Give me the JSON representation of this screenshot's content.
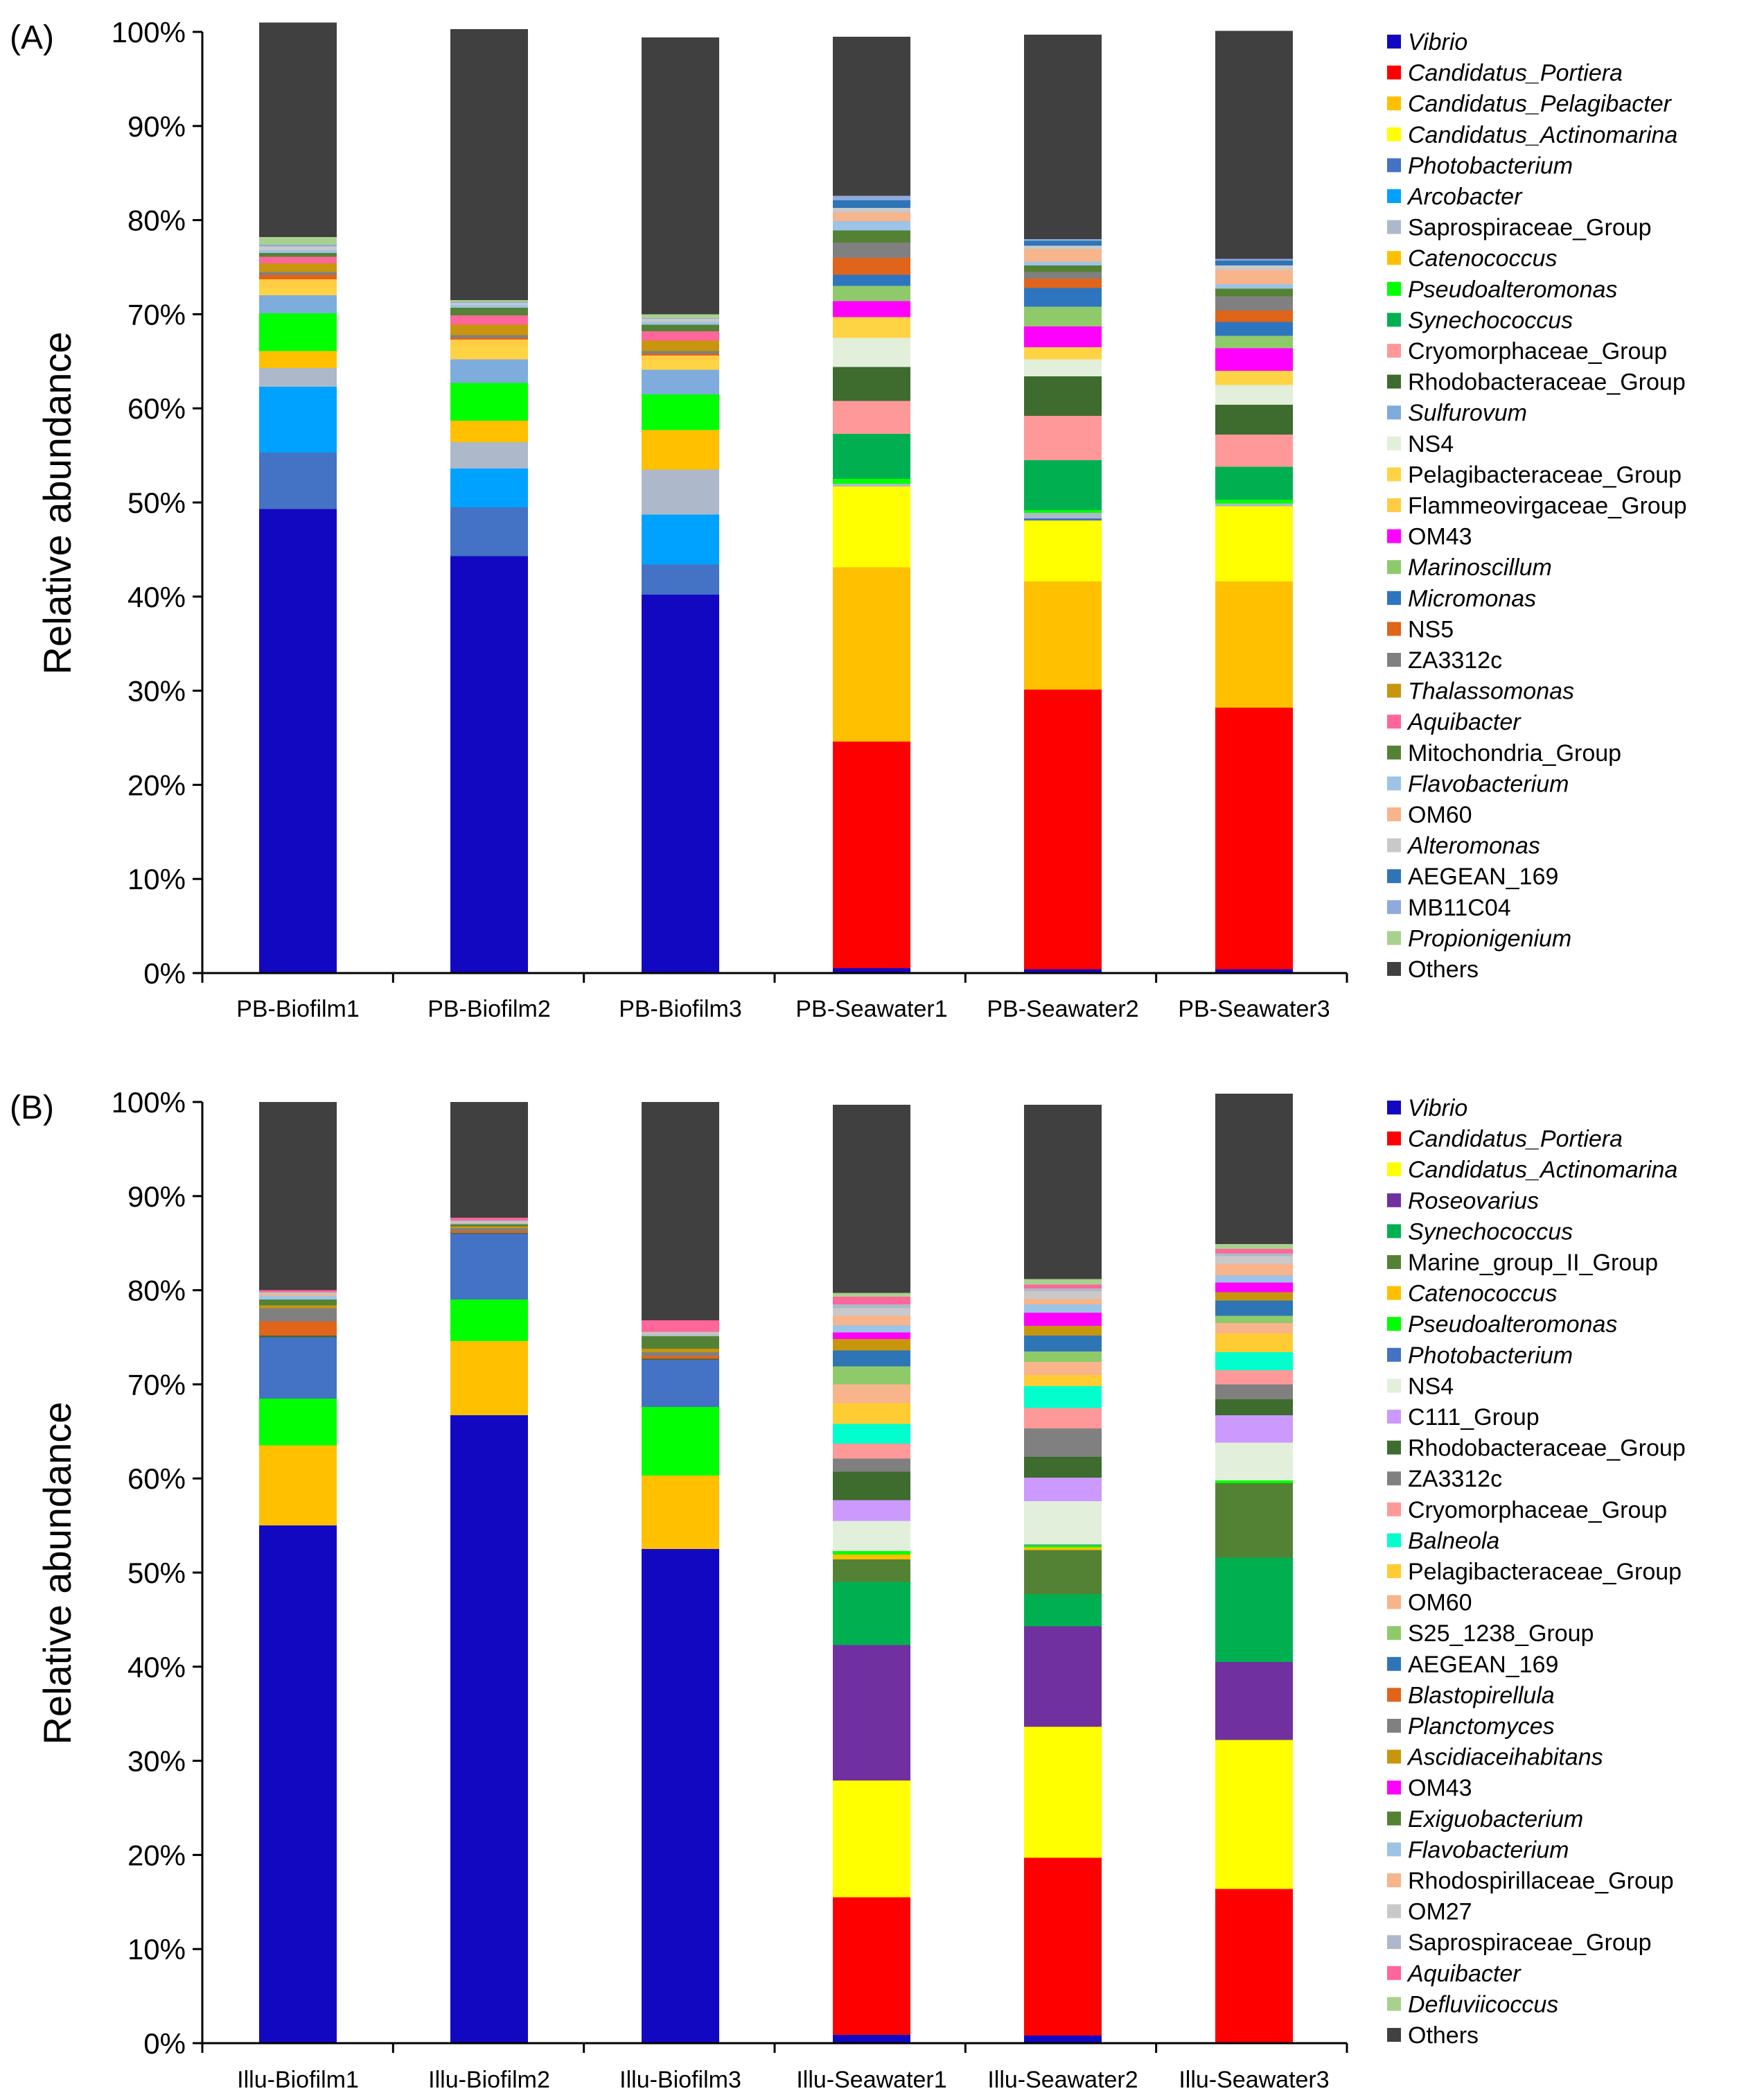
{
  "chart_data": [
    {
      "type": "bar",
      "stacked": true,
      "panel_label": "(A)",
      "ylabel": "Relative abundance",
      "ylim": [
        0,
        100
      ],
      "yticks": [
        "0%",
        "10%",
        "20%",
        "30%",
        "40%",
        "50%",
        "60%",
        "70%",
        "80%",
        "90%",
        "100%"
      ],
      "categories": [
        "PB-Biofilm1",
        "PB-Biofilm2",
        "PB-Biofilm3",
        "PB-Seawater1",
        "PB-Seawater2",
        "PB-Seawater3"
      ],
      "legend": [
        {
          "name": "Vibrio",
          "italic": true,
          "color": "#1208c2"
        },
        {
          "name": "Candidatus_Portiera",
          "italic": true,
          "color": "#ff0000"
        },
        {
          "name": "Candidatus_Pelagibacter",
          "italic": true,
          "color": "#ffc000"
        },
        {
          "name": "Candidatus_Actinomarina",
          "italic": true,
          "color": "#ffff00"
        },
        {
          "name": "Photobacterium",
          "italic": true,
          "color": "#4472c4"
        },
        {
          "name": "Arcobacter",
          "italic": true,
          "color": "#00a2ff"
        },
        {
          "name": "Saprospiraceae_Group",
          "italic": false,
          "color": "#adb9ca"
        },
        {
          "name": "Catenococcus",
          "italic": true,
          "color": "#ffc000"
        },
        {
          "name": "Pseudoalteromonas",
          "italic": true,
          "color": "#00ff00"
        },
        {
          "name": "Synechococcus",
          "italic": true,
          "color": "#00b050"
        },
        {
          "name": "Cryomorphaceae_Group",
          "italic": false,
          "color": "#ff9999"
        },
        {
          "name": "Rhodobacteraceae_Group",
          "italic": false,
          "color": "#3e6b2e"
        },
        {
          "name": "Sulfurovum",
          "italic": true,
          "color": "#7eacdc"
        },
        {
          "name": "NS4",
          "italic": false,
          "color": "#e2efda"
        },
        {
          "name": "Pelagibacteraceae_Group",
          "italic": false,
          "color": "#ffd444"
        },
        {
          "name": "Flammeovirgaceae_Group",
          "italic": false,
          "color": "#ffcc44"
        },
        {
          "name": "OM43",
          "italic": false,
          "color": "#ff00ff"
        },
        {
          "name": "Marinoscillum",
          "italic": true,
          "color": "#8fca6a"
        },
        {
          "name": "Micromonas",
          "italic": true,
          "color": "#2e75c0"
        },
        {
          "name": "NS5",
          "italic": false,
          "color": "#e0641a"
        },
        {
          "name": "ZA3312c",
          "italic": false,
          "color": "#808080"
        },
        {
          "name": "Thalassomonas",
          "italic": true,
          "color": "#c8960c"
        },
        {
          "name": "Aquibacter",
          "italic": true,
          "color": "#ff6699"
        },
        {
          "name": "Mitochondria_Group",
          "italic": false,
          "color": "#548235"
        },
        {
          "name": "Flavobacterium",
          "italic": true,
          "color": "#9dc3e6"
        },
        {
          "name": "OM60",
          "italic": false,
          "color": "#f8b48a"
        },
        {
          "name": "Alteromonas",
          "italic": true,
          "color": "#c9c9c9"
        },
        {
          "name": "AEGEAN_169",
          "italic": false,
          "color": "#2e75b6"
        },
        {
          "name": "MB11C04",
          "italic": false,
          "color": "#8faadc"
        },
        {
          "name": "Propionigenium",
          "italic": true,
          "color": "#a9d18e"
        },
        {
          "name": "Others",
          "italic": false,
          "color": "#404040"
        }
      ],
      "series": [
        {
          "name": "Vibrio",
          "values": [
            49.3,
            44.3,
            40.2,
            0.5,
            0.4,
            0.4
          ]
        },
        {
          "name": "Candidatus_Portiera",
          "values": [
            0,
            0,
            0,
            24.1,
            29.7,
            27.8
          ]
        },
        {
          "name": "Candidatus_Pelagibacter",
          "values": [
            0,
            0,
            0,
            18.5,
            11.5,
            13.4
          ]
        },
        {
          "name": "Candidatus_Actinomarina",
          "values": [
            0,
            0,
            0,
            8.6,
            6.5,
            8.0
          ]
        },
        {
          "name": "Photobacterium",
          "values": [
            6.0,
            5.2,
            3.2,
            0,
            0.2,
            0
          ]
        },
        {
          "name": "Arcobacter",
          "values": [
            7.0,
            4.1,
            5.3,
            0,
            0,
            0
          ]
        },
        {
          "name": "Saprospiraceae_Group",
          "values": [
            2.0,
            2.8,
            4.8,
            0.3,
            0.6,
            0.3
          ]
        },
        {
          "name": "Catenococcus",
          "values": [
            1.8,
            2.3,
            4.2,
            0,
            0,
            0
          ]
        },
        {
          "name": "Pseudoalteromonas",
          "values": [
            4.0,
            4.0,
            3.8,
            0.5,
            0.3,
            0.4
          ]
        },
        {
          "name": "Synechococcus",
          "values": [
            0,
            0,
            0,
            4.8,
            5.3,
            3.5
          ]
        },
        {
          "name": "Cryomorphaceae_Group",
          "values": [
            0,
            0,
            0,
            3.5,
            4.7,
            3.4
          ]
        },
        {
          "name": "Rhodobacteraceae_Group",
          "values": [
            0,
            0,
            0,
            3.6,
            4.2,
            3.2
          ]
        },
        {
          "name": "Sulfurovum",
          "values": [
            1.9,
            2.5,
            2.6,
            0,
            0,
            0
          ]
        },
        {
          "name": "NS4",
          "values": [
            0,
            0,
            0,
            3.1,
            1.8,
            2.1
          ]
        },
        {
          "name": "Pelagibacteraceae_Group",
          "values": [
            0.8,
            1.4,
            1.0,
            2.2,
            1.3,
            1.5
          ]
        },
        {
          "name": "Flammeovirgaceae_Group",
          "values": [
            0.9,
            0.7,
            0.5,
            0,
            0,
            0
          ]
        },
        {
          "name": "OM43",
          "values": [
            0,
            0,
            0,
            1.7,
            2.2,
            2.4
          ]
        },
        {
          "name": "Marinoscillum",
          "values": [
            0,
            0,
            0,
            1.6,
            2.1,
            1.3
          ]
        },
        {
          "name": "Micromonas",
          "values": [
            0,
            0,
            0,
            1.2,
            2.0,
            1.5
          ]
        },
        {
          "name": "NS5",
          "values": [
            0.5,
            0.2,
            0.2,
            1.8,
            1.0,
            1.2
          ]
        },
        {
          "name": "ZA3312c",
          "values": [
            0.3,
            0.3,
            0.3,
            1.6,
            0.7,
            1.5
          ]
        },
        {
          "name": "Thalassomonas",
          "values": [
            0.9,
            1.1,
            1.1,
            0,
            0,
            0
          ]
        },
        {
          "name": "Aquibacter",
          "values": [
            0.7,
            1.0,
            1.0,
            0,
            0,
            0
          ]
        },
        {
          "name": "Mitochondria_Group",
          "values": [
            0.4,
            0.8,
            0.7,
            1.3,
            0.7,
            0.8
          ]
        },
        {
          "name": "Flavobacterium",
          "values": [
            0.3,
            0.3,
            0.3,
            1.0,
            0.4,
            0.5
          ]
        },
        {
          "name": "OM60",
          "values": [
            0,
            0,
            0,
            0.9,
            1.3,
            1.5
          ]
        },
        {
          "name": "Alteromonas",
          "values": [
            0.4,
            0.2,
            0.3,
            0.5,
            0.4,
            0.5
          ]
        },
        {
          "name": "AEGEAN_169",
          "values": [
            0,
            0,
            0,
            0.8,
            0.5,
            0.5
          ]
        },
        {
          "name": "MB11C04",
          "values": [
            0.2,
            0.1,
            0.1,
            0.5,
            0.2,
            0.2
          ]
        },
        {
          "name": "Propionigenium",
          "values": [
            0.8,
            0.2,
            0.4,
            0,
            0,
            0
          ]
        },
        {
          "name": "Others",
          "values": [
            22.8,
            28.8,
            29.4,
            16.9,
            21.7,
            24.2
          ]
        }
      ]
    },
    {
      "type": "bar",
      "stacked": true,
      "panel_label": "(B)",
      "ylabel": "Relative abundance",
      "ylim": [
        0,
        100
      ],
      "yticks": [
        "0%",
        "10%",
        "20%",
        "30%",
        "40%",
        "50%",
        "60%",
        "70%",
        "80%",
        "90%",
        "100%"
      ],
      "categories": [
        "Illu-Biofilm1",
        "Illu-Biofilm2",
        "Illu-Biofilm3",
        "Illu-Seawater1",
        "Illu-Seawater2",
        "Illu-Seawater3"
      ],
      "legend": [
        {
          "name": "Vibrio",
          "italic": true,
          "color": "#1208c2"
        },
        {
          "name": "Candidatus_Portiera",
          "italic": true,
          "color": "#ff0000"
        },
        {
          "name": "Candidatus_Actinomarina",
          "italic": true,
          "color": "#ffff00"
        },
        {
          "name": "Roseovarius",
          "italic": true,
          "color": "#7030a0"
        },
        {
          "name": "Synechococcus",
          "italic": true,
          "color": "#00b050"
        },
        {
          "name": "Marine_group_II_Group",
          "italic": false,
          "color": "#548235"
        },
        {
          "name": "Catenococcus",
          "italic": true,
          "color": "#ffc000"
        },
        {
          "name": "Pseudoalteromonas",
          "italic": true,
          "color": "#00ff00"
        },
        {
          "name": "Photobacterium",
          "italic": true,
          "color": "#4472c4"
        },
        {
          "name": "NS4",
          "italic": false,
          "color": "#e2efda"
        },
        {
          "name": "C111_Group",
          "italic": false,
          "color": "#cc99ff"
        },
        {
          "name": "Rhodobacteraceae_Group",
          "italic": false,
          "color": "#3e6b2e"
        },
        {
          "name": "ZA3312c",
          "italic": false,
          "color": "#808080"
        },
        {
          "name": "Cryomorphaceae_Group",
          "italic": false,
          "color": "#ff9999"
        },
        {
          "name": "Balneola",
          "italic": true,
          "color": "#00ffcc"
        },
        {
          "name": "Pelagibacteraceae_Group",
          "italic": false,
          "color": "#ffcc33"
        },
        {
          "name": "OM60",
          "italic": false,
          "color": "#f8b48a"
        },
        {
          "name": "S25_1238_Group",
          "italic": false,
          "color": "#8fca6a"
        },
        {
          "name": "AEGEAN_169",
          "italic": false,
          "color": "#2e75b6"
        },
        {
          "name": "Blastopirellula",
          "italic": true,
          "color": "#e0641a"
        },
        {
          "name": "Planctomyces",
          "italic": true,
          "color": "#808080"
        },
        {
          "name": "Ascidiaceihabitans",
          "italic": true,
          "color": "#c8960c"
        },
        {
          "name": "OM43",
          "italic": false,
          "color": "#ff00ff"
        },
        {
          "name": "Exiguobacterium",
          "italic": true,
          "color": "#548235"
        },
        {
          "name": "Flavobacterium",
          "italic": true,
          "color": "#9dc3e6"
        },
        {
          "name": "Rhodospirillaceae_Group",
          "italic": false,
          "color": "#f8b48a"
        },
        {
          "name": "OM27",
          "italic": false,
          "color": "#c9c9c9"
        },
        {
          "name": "Saprospiraceae_Group",
          "italic": false,
          "color": "#adb9ca"
        },
        {
          "name": "Aquibacter",
          "italic": true,
          "color": "#ff6699"
        },
        {
          "name": "Defluviicoccus",
          "italic": true,
          "color": "#a9d18e"
        },
        {
          "name": "Others",
          "italic": false,
          "color": "#404040"
        }
      ],
      "series": [
        {
          "name": "Vibrio",
          "values": [
            55.0,
            66.7,
            52.5,
            0.9,
            0.8,
            0
          ]
        },
        {
          "name": "Candidatus_Portiera",
          "values": [
            0,
            0,
            0,
            14.6,
            18.9,
            16.4
          ]
        },
        {
          "name": "Candidatus_Actinomarina",
          "values": [
            0,
            0,
            0,
            12.4,
            13.9,
            15.8
          ]
        },
        {
          "name": "Roseovarius",
          "values": [
            0,
            0,
            0,
            14.4,
            10.7,
            8.3
          ]
        },
        {
          "name": "Synechococcus",
          "values": [
            0,
            0,
            0,
            6.7,
            3.4,
            11.1
          ]
        },
        {
          "name": "Marine_group_II_Group",
          "values": [
            0,
            0,
            0,
            2.4,
            4.7,
            7.9
          ]
        },
        {
          "name": "Catenococcus",
          "values": [
            8.5,
            7.9,
            7.8,
            0.5,
            0.3,
            0
          ]
        },
        {
          "name": "Pseudoalteromonas",
          "values": [
            5.0,
            4.4,
            7.3,
            0.4,
            0.2,
            0.3
          ]
        },
        {
          "name": "Photobacterium",
          "values": [
            6.5,
            7.0,
            5.0,
            0,
            0.1,
            0
          ]
        },
        {
          "name": "NS4",
          "values": [
            0,
            0,
            0,
            3.2,
            4.6,
            4.0
          ]
        },
        {
          "name": "C111_Group",
          "values": [
            0,
            0,
            0,
            2.2,
            2.5,
            2.9
          ]
        },
        {
          "name": "Rhodobacteraceae_Group",
          "values": [
            0.2,
            0.1,
            0.1,
            3.0,
            2.2,
            1.7
          ]
        },
        {
          "name": "ZA3312c",
          "values": [
            0,
            0,
            0,
            1.4,
            3.0,
            1.6
          ]
        },
        {
          "name": "Cryomorphaceae_Group",
          "values": [
            0,
            0,
            0,
            1.6,
            2.2,
            1.5
          ]
        },
        {
          "name": "Balneola",
          "values": [
            0,
            0,
            0,
            2.1,
            2.3,
            1.9
          ]
        },
        {
          "name": "Pelagibacteraceae_Group",
          "values": [
            0,
            0,
            0,
            2.2,
            1.2,
            2.0
          ]
        },
        {
          "name": "OM60",
          "values": [
            0,
            0,
            0,
            2.0,
            1.4,
            1.1
          ]
        },
        {
          "name": "S25_1238_Group",
          "values": [
            0,
            0,
            0,
            1.9,
            1.1,
            0.8
          ]
        },
        {
          "name": "AEGEAN_169",
          "values": [
            0,
            0,
            0,
            1.7,
            1.7,
            1.6
          ]
        },
        {
          "name": "Blastopirellula",
          "values": [
            1.5,
            0.2,
            0.3,
            0,
            0,
            0
          ]
        },
        {
          "name": "Planctomyces",
          "values": [
            1.4,
            0.3,
            0.4,
            0,
            0,
            0
          ]
        },
        {
          "name": "Ascidiaceihabitans",
          "values": [
            0.3,
            0.2,
            0.4,
            1.2,
            1.0,
            0.9
          ]
        },
        {
          "name": "OM43",
          "values": [
            0,
            0,
            0,
            0.7,
            1.4,
            1.0
          ]
        },
        {
          "name": "Exiguobacterium",
          "values": [
            0.6,
            0.2,
            1.3,
            0,
            0,
            0
          ]
        },
        {
          "name": "Flavobacterium",
          "values": [
            0.4,
            0.1,
            0.2,
            0.8,
            0.9,
            0.8
          ]
        },
        {
          "name": "Rhodospirillaceae_Group",
          "values": [
            0.2,
            0.1,
            0.1,
            1.0,
            0.6,
            1.2
          ]
        },
        {
          "name": "OM27",
          "values": [
            0.1,
            0.1,
            0.1,
            0.8,
            0.8,
            0.8
          ]
        },
        {
          "name": "Saprospiraceae_Group",
          "values": [
            0.1,
            0.1,
            0.1,
            0.4,
            0.3,
            0.3
          ]
        },
        {
          "name": "Aquibacter",
          "values": [
            0.2,
            0.3,
            1.2,
            0.8,
            0.4,
            0.5
          ]
        },
        {
          "name": "Defluviicoccus",
          "values": [
            0,
            0,
            0,
            0.4,
            0.6,
            0.5
          ]
        },
        {
          "name": "Others",
          "values": [
            20.0,
            12.3,
            23.2,
            20.0,
            18.5,
            16.0
          ]
        }
      ]
    }
  ]
}
